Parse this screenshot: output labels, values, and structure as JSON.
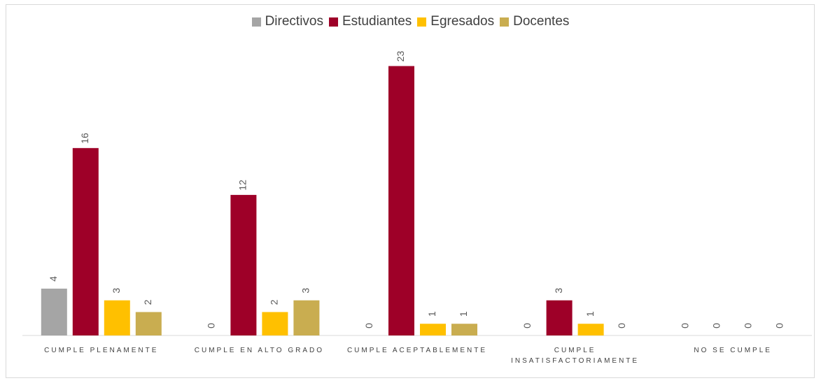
{
  "chart_data": {
    "type": "bar",
    "categories": [
      "CUMPLE PLENAMENTE",
      "CUMPLE EN ALTO GRADO",
      "CUMPLE ACEPTABLEMENTE",
      "CUMPLE INSATISFACTORIAMENTE",
      "NO SE CUMPLE"
    ],
    "series": [
      {
        "name": "Directivos",
        "color": "#a5a5a5",
        "values": [
          4,
          0,
          0,
          0,
          0
        ]
      },
      {
        "name": "Estudiantes",
        "color": "#9e0028",
        "values": [
          16,
          12,
          23,
          3,
          0
        ]
      },
      {
        "name": "Egresados",
        "color": "#ffc000",
        "values": [
          3,
          2,
          1,
          1,
          0
        ]
      },
      {
        "name": "Docentes",
        "color": "#c9ad50",
        "values": [
          2,
          3,
          1,
          0,
          0
        ]
      }
    ],
    "ylim": [
      0,
      25
    ],
    "legend": "top"
  }
}
